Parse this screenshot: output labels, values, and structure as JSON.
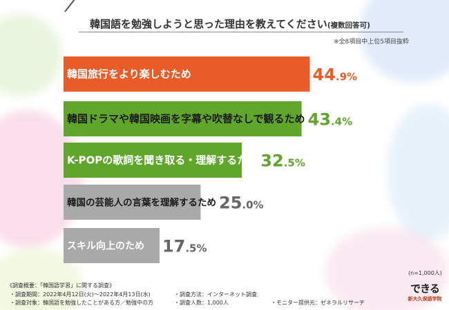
{
  "title": "韓国語を勉強しようと思った理由を教えてください",
  "title_suffix": "(複数回答可)",
  "note": "※全8項目中上位5項目抜粋",
  "n_note": "(n=1,000人)",
  "footer": {
    "line1": "《調査概要：「韓国語学習」に関する調査》",
    "period": "・調査期間：2022年4月12日(火)〜2022年4月13日(水)",
    "target": "・調査対象：韓国語を勉強したことがある方／勉強中の方",
    "method": "・調査方法：インターネット調査",
    "count": "・調査人数：1,000人",
    "monitor": "・モニター提供元：ゼネラルリサーチ"
  },
  "logo": {
    "mark": "できる",
    "school": "新大久保語学院"
  },
  "colors": {
    "top": "#e95b27",
    "second": "#5fa62b",
    "rest": "#a9a9a9"
  },
  "chart_data": {
    "type": "bar",
    "orientation": "horizontal",
    "categories": [
      "韓国旅行をより楽しむため",
      "韓国ドラマや韓国映画を字幕や吹替なしで観るため",
      "K-POPの歌詞を聞き取る・理解するため",
      "韓国の芸能人の言葉を理解するため",
      "スキル向上のため"
    ],
    "values": [
      44.9,
      43.4,
      32.5,
      25.0,
      17.5
    ],
    "value_labels": [
      "44.9%",
      "43.4%",
      "32.5%",
      "25.0%",
      "17.5%"
    ],
    "title": "韓国語を勉強しようと思った理由を教えてください(複数回答可)",
    "xlabel": "",
    "ylabel": "",
    "xlim": [
      0,
      60
    ]
  }
}
